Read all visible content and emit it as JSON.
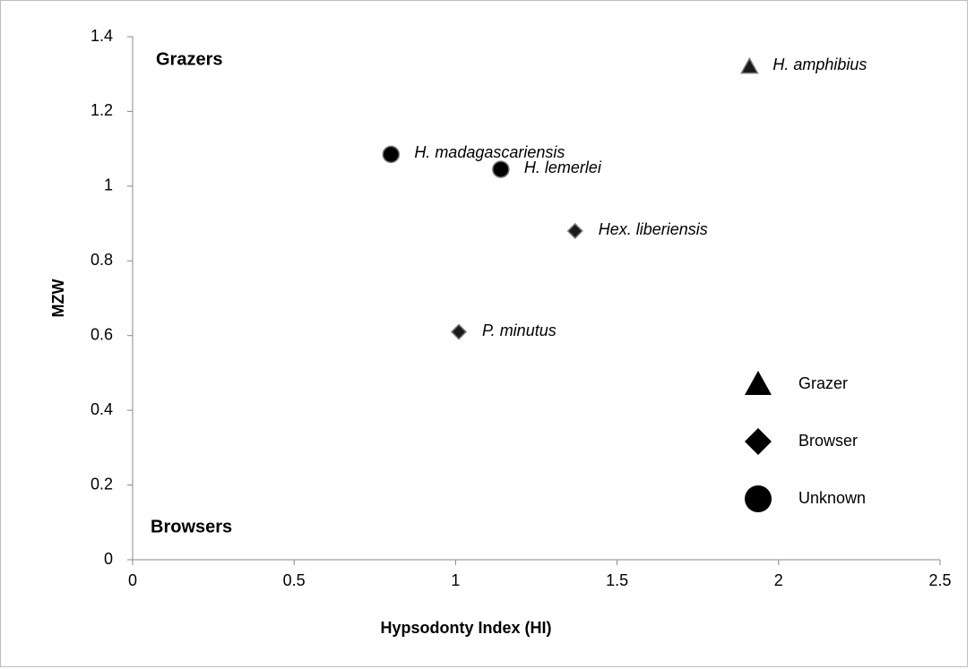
{
  "chart_data": {
    "type": "scatter",
    "x_label": "Hypsodonty Index (HI)",
    "y_label": "MZW",
    "annotations": [
      "Grazers",
      "Browsers"
    ],
    "xlim": [
      0,
      2.5
    ],
    "xticks": [
      0,
      0.5,
      1,
      1.5,
      2,
      2.5
    ],
    "ylim": [
      0,
      1.4
    ],
    "yticks": [
      0,
      0.2,
      0.4,
      0.6,
      0.8,
      1,
      1.2,
      1.4
    ],
    "grid": false,
    "legend": "right",
    "series": [
      {
        "name": "Grazer",
        "marker": "triangle",
        "color": "#1a1a1a",
        "x": [
          1.91
        ],
        "values": [
          1.32
        ],
        "labels": [
          "H. amphibius"
        ]
      },
      {
        "name": "Browser",
        "marker": "diamond",
        "color": "#1a1a1a",
        "x": [
          1.37,
          1.01
        ],
        "values": [
          0.88,
          0.61
        ],
        "labels": [
          "Hex. liberiensis",
          "P. minutus"
        ]
      },
      {
        "name": "Unknown",
        "marker": "circle",
        "color": "#000000",
        "x": [
          0.8,
          1.14
        ],
        "values": [
          1.085,
          1.045
        ],
        "labels": [
          "H. madagascariensis",
          "H. lemerlei"
        ]
      }
    ]
  }
}
